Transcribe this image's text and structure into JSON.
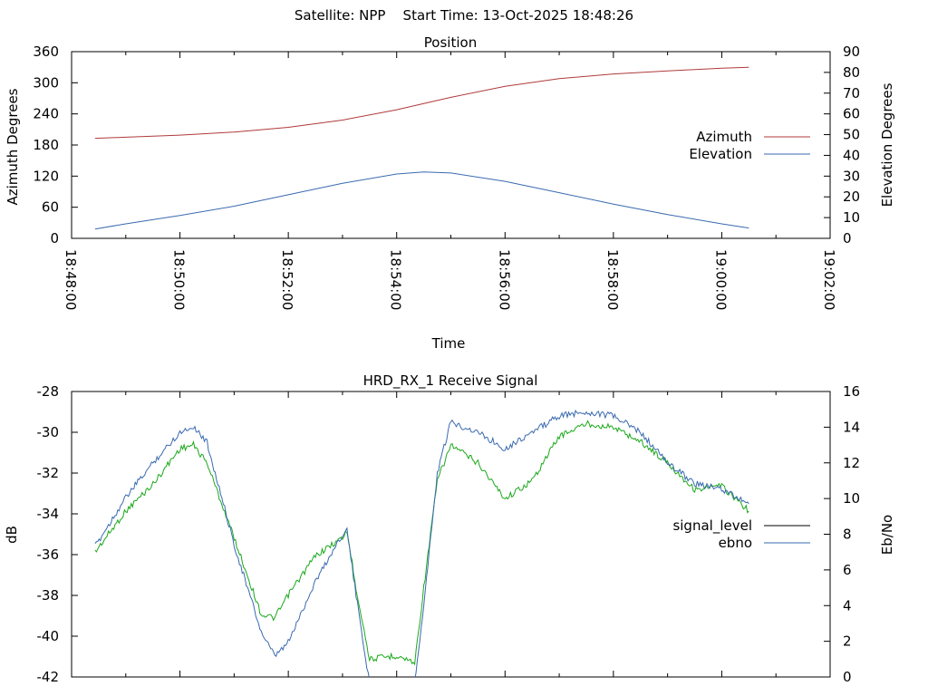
{
  "header": {
    "title": "Satellite: NPP    Start Time: 13-Oct-2025 18:48:26"
  },
  "chart_data": [
    {
      "type": "line",
      "title": "Position",
      "xlabel": "Time",
      "ylabel": "Azimuth Degrees",
      "y2label": "Elevation Degrees",
      "x_ticks": [
        "18:48:00",
        "18:50:00",
        "18:52:00",
        "18:54:00",
        "18:56:00",
        "18:58:00",
        "19:00:00",
        "19:02:00"
      ],
      "xlim": [
        "18:48:00",
        "19:02:00"
      ],
      "ylim": [
        0,
        360
      ],
      "y_ticks": [
        0,
        60,
        120,
        180,
        240,
        300,
        360
      ],
      "y2lim": [
        0,
        90
      ],
      "y2_ticks": [
        0,
        10,
        20,
        30,
        40,
        50,
        60,
        70,
        80,
        90
      ],
      "legend_position": "right",
      "series": [
        {
          "name": "Azimuth",
          "axis": "left",
          "color": "#b03a3a",
          "x": [
            "18:48:26",
            "18:49:00",
            "18:50:00",
            "18:51:00",
            "18:52:00",
            "18:53:00",
            "18:54:00",
            "18:55:00",
            "18:56:00",
            "18:57:00",
            "18:58:00",
            "18:59:00",
            "19:00:00",
            "19:00:30"
          ],
          "values": [
            193,
            195,
            199,
            205,
            214,
            228,
            248,
            272,
            293,
            308,
            317,
            323,
            328,
            330
          ]
        },
        {
          "name": "Elevation",
          "axis": "right",
          "color": "#3a6ab0",
          "x": [
            "18:48:26",
            "18:49:00",
            "18:50:00",
            "18:51:00",
            "18:52:00",
            "18:53:00",
            "18:54:00",
            "18:54:30",
            "18:55:00",
            "18:56:00",
            "18:57:00",
            "18:58:00",
            "18:59:00",
            "19:00:00",
            "19:00:30"
          ],
          "values": [
            4.5,
            7,
            11,
            15.5,
            21,
            26.5,
            31,
            32,
            31.5,
            27.5,
            22,
            16.5,
            11.5,
            7,
            5
          ]
        }
      ]
    },
    {
      "type": "line",
      "title": "HRD_RX_1 Receive Signal",
      "ylabel": "dB",
      "y2label": "Eb/No",
      "xlim": [
        "18:48:00",
        "19:02:00"
      ],
      "ylim": [
        -42,
        -28
      ],
      "y_ticks": [
        -42,
        -40,
        -38,
        -36,
        -34,
        -32,
        -30,
        -28
      ],
      "y2lim": [
        0,
        16
      ],
      "y2_ticks": [
        0,
        2,
        4,
        6,
        8,
        10,
        12,
        14,
        16
      ],
      "legend_position": "right",
      "series": [
        {
          "name": "signal_level",
          "axis": "left",
          "legend_color": "#000000",
          "color": "#3a6ab0",
          "x": [
            "18:48:26",
            "18:49:00",
            "18:49:30",
            "18:50:00",
            "18:50:15",
            "18:50:30",
            "18:51:00",
            "18:51:30",
            "18:51:45",
            "18:52:00",
            "18:52:30",
            "18:53:00",
            "18:53:05",
            "18:53:15",
            "18:53:30",
            "18:54:00",
            "18:54:20",
            "18:54:30",
            "18:54:45",
            "18:55:00",
            "18:55:30",
            "18:56:00",
            "18:56:30",
            "18:57:00",
            "18:57:30",
            "18:58:00",
            "18:58:30",
            "18:59:00",
            "18:59:30",
            "19:00:00",
            "19:00:30"
          ],
          "values": [
            -35.6,
            -33.2,
            -31.5,
            -30.0,
            -29.7,
            -30.5,
            -35.5,
            -39.8,
            -41.0,
            -40.3,
            -37.3,
            -35.0,
            -34.8,
            -38.0,
            -42.3,
            -42.8,
            -42.3,
            -38.5,
            -32.0,
            -29.5,
            -30.0,
            -30.8,
            -30.0,
            -29.2,
            -29.0,
            -29.2,
            -30.0,
            -31.5,
            -32.5,
            -32.8,
            -33.5
          ]
        },
        {
          "name": "ebno",
          "axis": "right",
          "color": "#1aa81a",
          "x": [
            "18:48:26",
            "18:49:00",
            "18:49:30",
            "18:50:00",
            "18:50:15",
            "18:50:30",
            "18:51:00",
            "18:51:30",
            "18:51:45",
            "18:52:00",
            "18:52:30",
            "18:53:00",
            "18:53:05",
            "18:53:15",
            "18:53:30",
            "18:54:00",
            "18:54:20",
            "18:54:30",
            "18:54:45",
            "18:55:00",
            "18:55:30",
            "18:56:00",
            "18:56:30",
            "18:57:00",
            "18:57:30",
            "18:58:00",
            "18:58:30",
            "18:59:00",
            "18:59:30",
            "19:00:00",
            "19:00:30"
          ],
          "values": [
            7.0,
            9.3,
            10.8,
            12.8,
            13.0,
            12.0,
            7.8,
            3.5,
            3.3,
            4.6,
            6.8,
            7.8,
            8.2,
            5.0,
            1.0,
            1.2,
            0.8,
            5.0,
            11.0,
            13.0,
            12.0,
            10.0,
            11.0,
            13.5,
            14.2,
            14.0,
            13.2,
            12.0,
            10.5,
            10.7,
            9.3
          ]
        }
      ]
    }
  ]
}
